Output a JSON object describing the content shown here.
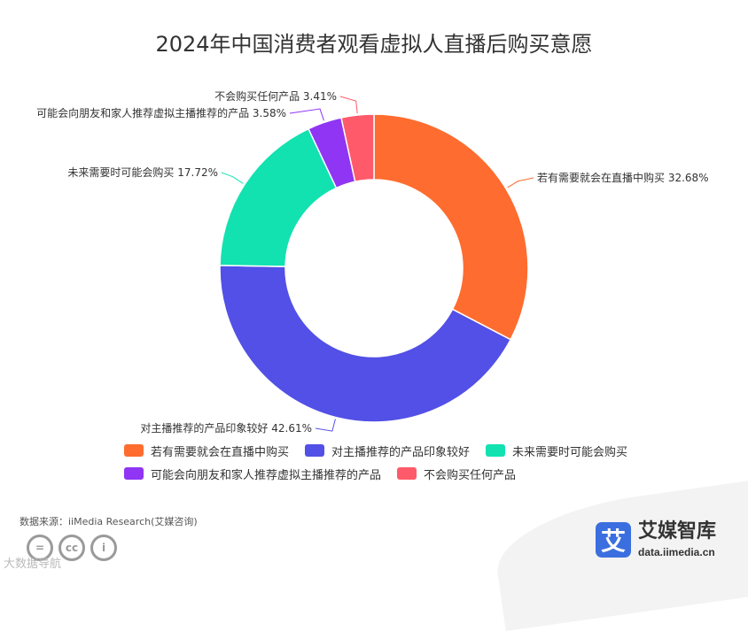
{
  "chart_data": {
    "type": "pie",
    "variant": "donut",
    "title": "2024年中国消费者观看虚拟人直播后购买意愿",
    "legend_position": "bottom",
    "slices": [
      {
        "label": "若有需要就会在直播中购买",
        "value": 32.68,
        "color": "#FF6C2F"
      },
      {
        "label": "对主播推荐的产品印象较好",
        "value": 42.61,
        "color": "#5250E6"
      },
      {
        "label": "未来需要时可能会购买",
        "value": 17.72,
        "color": "#12E2B0"
      },
      {
        "label": "可能会向朋友和家人推荐虚拟主播推荐的产品",
        "value": 3.58,
        "color": "#8F35F3"
      },
      {
        "label": "不会购买任何产品",
        "value": 3.41,
        "color": "#FF5A6A"
      }
    ],
    "slice_labels": [
      "若有需要就会在直播中购买 32.68%",
      "对主播推荐的产品印象较好 42.61%",
      "未来需要时可能会购买 17.72%",
      "可能会向朋友和家人推荐虚拟主播推荐的产品 3.58%",
      "不会购买任何产品 3.41%"
    ]
  },
  "footer": {
    "source": "数据来源：iiMedia Research(艾媒咨询)",
    "watermark": "大数据导航"
  },
  "brand": {
    "logo_char": "艾",
    "name": "艾媒智库",
    "url": "data.iimedia.cn"
  }
}
